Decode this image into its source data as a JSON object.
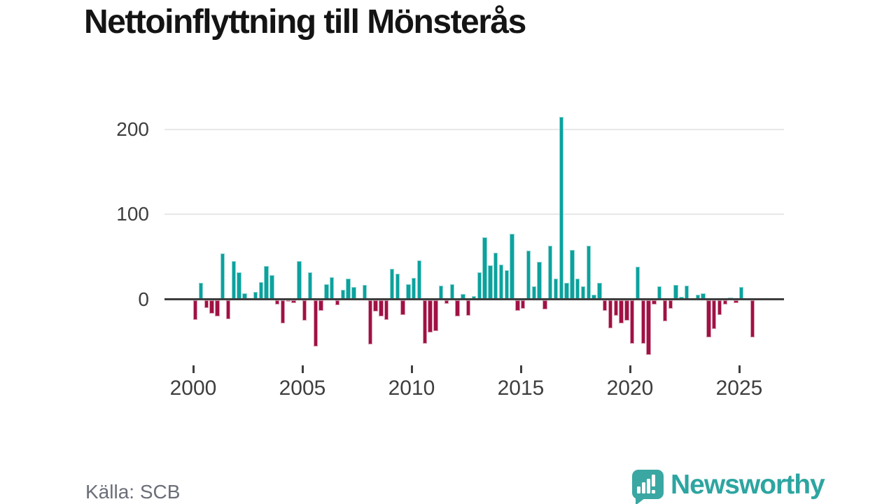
{
  "title": "Nettoinflyttning till Mönsterås",
  "source": "Källa: SCB",
  "logo": {
    "text": "Newsworthy"
  },
  "yaxis": {
    "labels": [
      "200",
      "100",
      "0"
    ]
  },
  "xaxis": {
    "labels": [
      "2000",
      "2005",
      "2010",
      "2015",
      "2020",
      "2025"
    ]
  },
  "colors": {
    "positive": "#0ca29e",
    "positive_edge": "#8fd4d1",
    "negative": "#a01144",
    "negative_edge": "#d79bb0",
    "grid": "#e8e8e8",
    "axis": "#3d3d3d",
    "text": "#3e3e3e",
    "muted": "#6b6e78",
    "brand": "#2da5a1"
  },
  "chart_data": {
    "type": "bar",
    "title": "Nettoinflyttning till Mönsterås",
    "frequency": "quarterly",
    "start": "2000-Q1",
    "end": "2025-Q3",
    "xlabel": "",
    "ylabel": "",
    "yticks": [
      0,
      100,
      200
    ],
    "ylim": [
      -80,
      230
    ],
    "xtick_labels": [
      "2000",
      "2005",
      "2010",
      "2015",
      "2020",
      "2025"
    ],
    "grid": true,
    "legend": false,
    "values": [
      -23,
      19,
      -9,
      -16,
      -19,
      54,
      -22,
      45,
      32,
      7,
      0,
      9,
      20,
      39,
      28,
      -5,
      -27,
      -2,
      -3,
      45,
      -24,
      32,
      -54,
      -12,
      18,
      26,
      -6,
      11,
      24,
      14,
      0,
      17,
      -52,
      -13,
      -19,
      -23,
      36,
      30,
      -17,
      18,
      25,
      46,
      -51,
      -38,
      -36,
      16,
      -4,
      18,
      -19,
      6,
      -18,
      4,
      32,
      73,
      40,
      55,
      41,
      34,
      77,
      -12,
      -10,
      57,
      15,
      44,
      -11,
      63,
      24,
      214,
      19,
      58,
      24,
      15,
      63,
      5,
      19,
      -12,
      -33,
      -18,
      -27,
      -24,
      -51,
      38,
      -51,
      -64,
      -5,
      15,
      -25,
      -10,
      17,
      3,
      16,
      0,
      5,
      7,
      -44,
      -34,
      -17,
      -5,
      2,
      -3,
      14,
      0,
      -44
    ]
  }
}
